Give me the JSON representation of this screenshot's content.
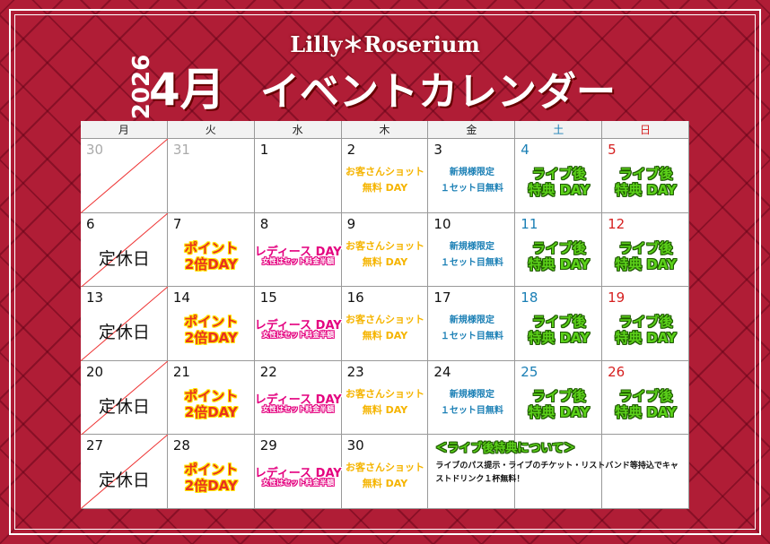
{
  "header": {
    "brand": "Lilly＊Roserium",
    "year": "2026",
    "month": "4月",
    "title": "イベントカレンダー"
  },
  "calendar": {
    "weekdays": [
      "月",
      "火",
      "水",
      "木",
      "金",
      "土",
      "日"
    ],
    "weeks": [
      [
        {
          "date": "30",
          "lines": []
        },
        {
          "date": "31",
          "lines": []
        },
        {
          "date": "1",
          "lines": []
        },
        {
          "date": "2",
          "lines": [
            "お客さんショット",
            "無料 DAY"
          ]
        },
        {
          "date": "3",
          "lines": [
            "新規様限定",
            "１セット目無料"
          ]
        },
        {
          "date": "4",
          "lines": [
            "ライブ後",
            "特典 DAY"
          ]
        },
        {
          "date": "5",
          "lines": [
            "ライブ後",
            "特典 DAY"
          ]
        }
      ],
      [
        {
          "date": "6",
          "lines": [
            "定休日"
          ]
        },
        {
          "date": "7",
          "lines": [
            "ポイント",
            "2倍DAY"
          ]
        },
        {
          "date": "8",
          "lines": [
            "レディース DAY",
            "女性はセット料金半額"
          ]
        },
        {
          "date": "9",
          "lines": [
            "お客さんショット",
            "無料 DAY"
          ]
        },
        {
          "date": "10",
          "lines": [
            "新規様限定",
            "１セット目無料"
          ]
        },
        {
          "date": "11",
          "lines": [
            "ライブ後",
            "特典 DAY"
          ]
        },
        {
          "date": "12",
          "lines": [
            "ライブ後",
            "特典 DAY"
          ]
        }
      ],
      [
        {
          "date": "13",
          "lines": [
            "定休日"
          ]
        },
        {
          "date": "14",
          "lines": [
            "ポイント",
            "2倍DAY"
          ]
        },
        {
          "date": "15",
          "lines": [
            "レディース DAY",
            "女性はセット料金半額"
          ]
        },
        {
          "date": "16",
          "lines": [
            "お客さんショット",
            "無料 DAY"
          ]
        },
        {
          "date": "17",
          "lines": [
            "新規様限定",
            "１セット目無料"
          ]
        },
        {
          "date": "18",
          "lines": [
            "ライブ後",
            "特典 DAY"
          ]
        },
        {
          "date": "19",
          "lines": [
            "ライブ後",
            "特典 DAY"
          ]
        }
      ],
      [
        {
          "date": "20",
          "lines": [
            "定休日"
          ]
        },
        {
          "date": "21",
          "lines": [
            "ポイント",
            "2倍DAY"
          ]
        },
        {
          "date": "22",
          "lines": [
            "レディース DAY",
            "女性はセット料金半額"
          ]
        },
        {
          "date": "23",
          "lines": [
            "お客さんショット",
            "無料 DAY"
          ]
        },
        {
          "date": "24",
          "lines": [
            "新規様限定",
            "１セット目無料"
          ]
        },
        {
          "date": "25",
          "lines": [
            "ライブ後",
            "特典 DAY"
          ]
        },
        {
          "date": "26",
          "lines": [
            "ライブ後",
            "特典 DAY"
          ]
        }
      ],
      [
        {
          "date": "27",
          "lines": [
            "定休日"
          ]
        },
        {
          "date": "28",
          "lines": [
            "ポイント",
            "2倍DAY"
          ]
        },
        {
          "date": "29",
          "lines": [
            "レディース DAY",
            "女性はセット料金半額"
          ]
        },
        {
          "date": "30",
          "lines": [
            "お客さんショット",
            "無料 DAY"
          ]
        }
      ]
    ],
    "note": {
      "title": "＜ライブ後特典について＞",
      "text": "ライブのパス提示・ライブのチケット・リストバンド等持込でキャストドリンク１杯無料！"
    }
  }
}
